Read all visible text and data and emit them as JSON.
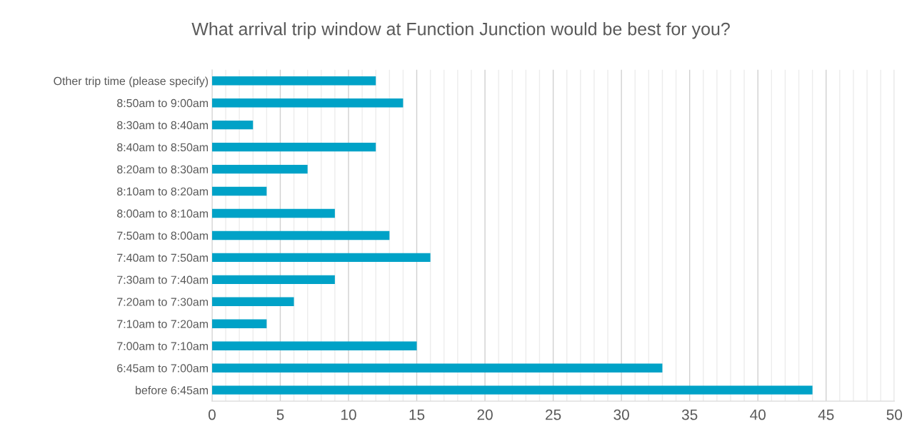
{
  "chart_data": {
    "type": "bar",
    "orientation": "horizontal",
    "title": "What arrival trip window at Function Junction would be best for you?",
    "categories": [
      "Other trip time (please specify)",
      "8:50am to 9:00am",
      "8:30am to 8:40am",
      "8:40am to 8:50am",
      "8:20am to 8:30am",
      "8:10am to 8:20am",
      "8:00am to 8:10am",
      "7:50am to 8:00am",
      "7:40am to 7:50am",
      "7:30am to 7:40am",
      "7:20am to 7:30am",
      "7:10am to 7:20am",
      "7:00am to 7:10am",
      "6:45am to 7:00am",
      "before 6:45am"
    ],
    "values": [
      12,
      14,
      3,
      12,
      7,
      4,
      9,
      13,
      16,
      9,
      6,
      4,
      15,
      33,
      44
    ],
    "color": "#00a2c7",
    "xlim": [
      0,
      50
    ],
    "xticks": [
      0,
      {
        "value": 1,
        "label": null
      },
      {
        "value": 2,
        "label": null
      },
      {
        "value": 3,
        "label": null
      },
      {
        "value": 4,
        "label": null
      },
      5,
      {
        "value": 6,
        "label": null
      },
      {
        "value": 7,
        "label": null
      },
      {
        "value": 8,
        "label": null
      },
      {
        "value": 9,
        "label": null
      },
      10,
      {
        "value": 11,
        "label": null
      },
      {
        "value": 12,
        "label": null
      },
      {
        "value": 13,
        "label": null
      },
      {
        "value": 14,
        "label": null
      },
      15,
      {
        "value": 16,
        "label": null
      },
      {
        "value": 17,
        "label": null
      },
      {
        "value": 18,
        "label": null
      },
      {
        "value": 19,
        "label": null
      },
      20,
      {
        "value": 21,
        "label": null
      },
      {
        "value": 22,
        "label": null
      },
      {
        "value": 23,
        "label": null
      },
      {
        "value": 24,
        "label": null
      },
      25,
      {
        "value": 26,
        "label": null
      },
      {
        "value": 27,
        "label": null
      },
      {
        "value": 28,
        "label": null
      },
      {
        "value": 29,
        "label": null
      },
      30,
      {
        "value": 31,
        "label": null
      },
      {
        "value": 32,
        "label": null
      },
      {
        "value": 33,
        "label": null
      },
      {
        "value": 34,
        "label": null
      },
      35,
      {
        "value": 36,
        "label": null
      },
      {
        "value": 37,
        "label": null
      },
      {
        "value": 38,
        "label": null
      },
      {
        "value": 39,
        "label": null
      },
      40,
      {
        "value": 41,
        "label": null
      },
      {
        "value": 42,
        "label": null
      },
      {
        "value": 43,
        "label": null
      },
      {
        "value": 44,
        "label": null
      },
      45,
      {
        "value": 46,
        "label": null
      },
      {
        "value": 47,
        "label": null
      },
      {
        "value": 48,
        "label": null
      },
      {
        "value": 49,
        "label": null
      },
      50
    ],
    "grid": "x"
  }
}
